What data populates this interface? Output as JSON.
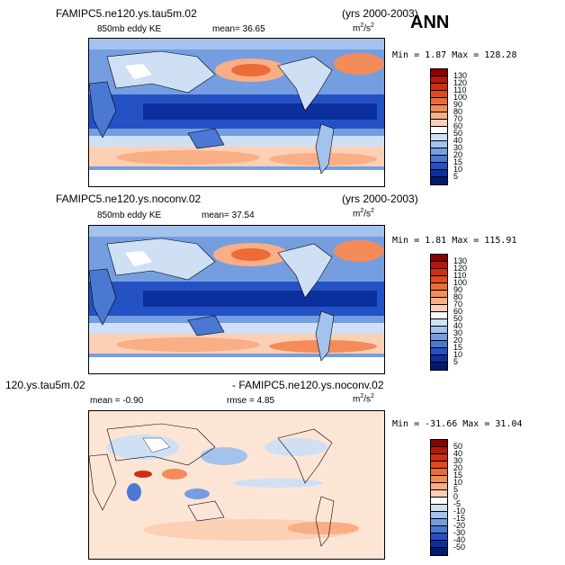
{
  "season": "ANN",
  "panels": [
    {
      "case_name": "FAMIPC5.ne120.ys.tau5m.02",
      "years": "(yrs 2000-2003)",
      "variable": "850mb eddy KE",
      "stat_left": "mean=  36.65",
      "stat_right": "",
      "units_base": "m",
      "units_exp1": "2",
      "units_sep": "/s",
      "units_exp2": "2",
      "minmax": "Min =   1.87 Max = 128.28",
      "levels": [
        "130",
        "120",
        "110",
        "100",
        "90",
        "80",
        "70",
        "60",
        "50",
        "40",
        "30",
        "20",
        "15",
        "10",
        "5"
      ]
    },
    {
      "case_name": "FAMIPC5.ne120.ys.noconv.02",
      "years": "(yrs 2000-2003)",
      "variable": "850mb eddy KE",
      "stat_left": "mean=  37.54",
      "stat_right": "",
      "units_base": "m",
      "units_exp1": "2",
      "units_sep": "/s",
      "units_exp2": "2",
      "minmax": "Min =   1.81 Max = 115.91",
      "levels": [
        "130",
        "120",
        "110",
        "100",
        "90",
        "80",
        "70",
        "60",
        "50",
        "40",
        "30",
        "20",
        "15",
        "10",
        "5"
      ]
    },
    {
      "case_name": "120.ys.tau5m.02",
      "years": "- FAMIPC5.ne120.ys.noconv.02",
      "variable": "mean =  -0.90",
      "stat_left": "rmse =   4.85",
      "stat_right": "",
      "units_base": "m",
      "units_exp1": "2",
      "units_sep": "/s",
      "units_exp2": "2",
      "minmax": "Min = -31.66 Max =  31.04",
      "levels": [
        "50",
        "40",
        "30",
        "20",
        "15",
        "10",
        "5",
        "0",
        "-5",
        "-10",
        "-15",
        "-20",
        "-30",
        "-40",
        "-50"
      ]
    }
  ],
  "colors": {
    "seq": [
      "#8b0000",
      "#b2180b",
      "#cf2e12",
      "#e04a1c",
      "#ec6b37",
      "#f48c5a",
      "#f9ae85",
      "#fbd0b4",
      "#ffffff",
      "#cfe0f5",
      "#a4c3ec",
      "#749ee0",
      "#4a78d3",
      "#2452c4",
      "#0c2f9e",
      "#001a6e"
    ],
    "div": [
      "#8b0000",
      "#b2180b",
      "#cf2e12",
      "#e04a1c",
      "#ec6b37",
      "#f48c5a",
      "#f9ae85",
      "#fbd0b4",
      "#ffffff",
      "#cfe0f5",
      "#a4c3ec",
      "#749ee0",
      "#4a78d3",
      "#2452c4",
      "#0c2f9e",
      "#001a6e"
    ]
  }
}
